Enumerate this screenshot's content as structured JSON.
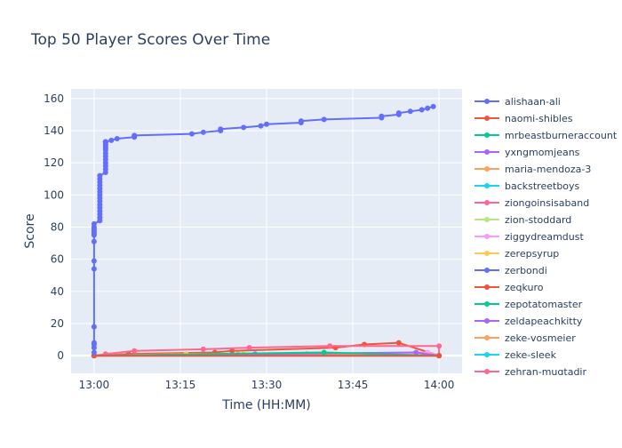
{
  "chart_data": {
    "type": "line",
    "title": "Top 50 Player Scores Over Time",
    "xlabel": "Time (HH:MM)",
    "ylabel": "Score",
    "xlim": [
      "12:56",
      "14:04"
    ],
    "ylim": [
      -11,
      166
    ],
    "x_ticks": [
      "13:00",
      "13:15",
      "13:30",
      "13:45",
      "14:00"
    ],
    "y_ticks": [
      0,
      20,
      40,
      60,
      80,
      100,
      120,
      140,
      160
    ],
    "grid": true,
    "legend_position": "right",
    "series": [
      {
        "name": "alishaan-ali",
        "color": "#636efa",
        "x": [
          "13:00",
          "13:00",
          "13:00",
          "13:00",
          "13:00",
          "13:00",
          "13:00",
          "13:00",
          "13:00",
          "13:00",
          "13:00",
          "13:00",
          "13:00",
          "13:00",
          "13:00",
          "13:01",
          "13:01",
          "13:01",
          "13:01",
          "13:01",
          "13:01",
          "13:01",
          "13:01",
          "13:01",
          "13:01",
          "13:01",
          "13:01",
          "13:01",
          "13:01",
          "13:01",
          "13:02",
          "13:02",
          "13:02",
          "13:02",
          "13:02",
          "13:02",
          "13:02",
          "13:02",
          "13:02",
          "13:02",
          "13:02",
          "13:02",
          "13:02",
          "13:02",
          "13:02",
          "13:02",
          "13:02",
          "13:02",
          "13:03",
          "13:04",
          "13:07",
          "13:07",
          "13:17",
          "13:19",
          "13:22",
          "13:22",
          "13:26",
          "13:29",
          "13:30",
          "13:36",
          "13:36",
          "13:40",
          "13:50",
          "13:50",
          "13:53",
          "13:53",
          "13:55",
          "13:57",
          "13:58",
          "13:59"
        ],
        "y": [
          2,
          5,
          7,
          8,
          18,
          54,
          59,
          71,
          75,
          76,
          77,
          78,
          79,
          80,
          82,
          84,
          86,
          88,
          90,
          92,
          94,
          96,
          98,
          100,
          102,
          104,
          106,
          108,
          110,
          112,
          114,
          116,
          118,
          120,
          122,
          124,
          126,
          128,
          129,
          130,
          131,
          132,
          133,
          133,
          133,
          133,
          133,
          133,
          134,
          135,
          136,
          137,
          138,
          139,
          140,
          141,
          142,
          143,
          144,
          145,
          146,
          147,
          148,
          149,
          150,
          151,
          152,
          153,
          154,
          155
        ]
      },
      {
        "name": "naomi-shibles",
        "color": "#EF553B",
        "x": [
          "13:00",
          "14:00"
        ],
        "y": [
          0,
          0
        ]
      },
      {
        "name": "mrbeastburneraccount",
        "color": "#00cc96",
        "x": [
          "13:00",
          "13:40",
          "14:00"
        ],
        "y": [
          0,
          2,
          0
        ]
      },
      {
        "name": "yxngmomjeans",
        "color": "#ab63fa",
        "x": [
          "13:00",
          "13:28",
          "13:56",
          "14:00"
        ],
        "y": [
          0,
          1,
          2,
          0
        ]
      },
      {
        "name": "maria-mendoza-3",
        "color": "#FFA15A",
        "x": [
          "13:00",
          "13:25",
          "14:00"
        ],
        "y": [
          0,
          1,
          0
        ]
      },
      {
        "name": "backstreetboys",
        "color": "#19d3f3",
        "x": [
          "13:00",
          "13:37",
          "14:00"
        ],
        "y": [
          0,
          1,
          0
        ]
      },
      {
        "name": "ziongoinsisaband",
        "color": "#FF6692",
        "x": [
          "13:00",
          "13:02",
          "13:07",
          "13:19",
          "13:27",
          "13:41",
          "14:00",
          "14:00"
        ],
        "y": [
          0,
          1,
          3,
          4,
          5,
          6,
          6,
          0
        ]
      },
      {
        "name": "zion-stoddard",
        "color": "#B6E880",
        "x": [
          "13:00",
          "14:00"
        ],
        "y": [
          0,
          0
        ]
      },
      {
        "name": "ziggydreamdust",
        "color": "#FF97FF",
        "x": [
          "13:00",
          "13:58",
          "14:00"
        ],
        "y": [
          0,
          2,
          0
        ]
      },
      {
        "name": "zerepsyrup",
        "color": "#FECB52",
        "x": [
          "13:00",
          "13:16",
          "13:26",
          "14:00"
        ],
        "y": [
          0,
          1,
          1,
          0
        ]
      },
      {
        "name": "zerbondi",
        "color": "#636efa",
        "x": [
          "13:00",
          "14:00"
        ],
        "y": [
          0,
          0
        ]
      },
      {
        "name": "zeqkuro",
        "color": "#EF553B",
        "x": [
          "13:00",
          "13:06",
          "13:21",
          "13:24",
          "13:42",
          "13:47",
          "13:53",
          "14:00"
        ],
        "y": [
          0,
          1,
          2,
          3,
          5,
          7,
          8,
          0
        ]
      },
      {
        "name": "zepotatomaster",
        "color": "#00cc96",
        "x": [
          "13:00",
          "14:00"
        ],
        "y": [
          0,
          0
        ]
      },
      {
        "name": "zeldapeachkitty",
        "color": "#ab63fa",
        "x": [
          "13:00",
          "14:00"
        ],
        "y": [
          0,
          0
        ]
      },
      {
        "name": "zeke-vosmeier",
        "color": "#FFA15A",
        "x": [
          "13:00",
          "14:00"
        ],
        "y": [
          0,
          0
        ]
      },
      {
        "name": "zeke-sleek",
        "color": "#19d3f3",
        "x": [
          "13:00",
          "14:00"
        ],
        "y": [
          0,
          0
        ]
      },
      {
        "name": "zehran-muqtadir",
        "color": "#FF6692",
        "x": [
          "13:00",
          "14:00"
        ],
        "y": [
          0,
          0
        ]
      }
    ]
  }
}
